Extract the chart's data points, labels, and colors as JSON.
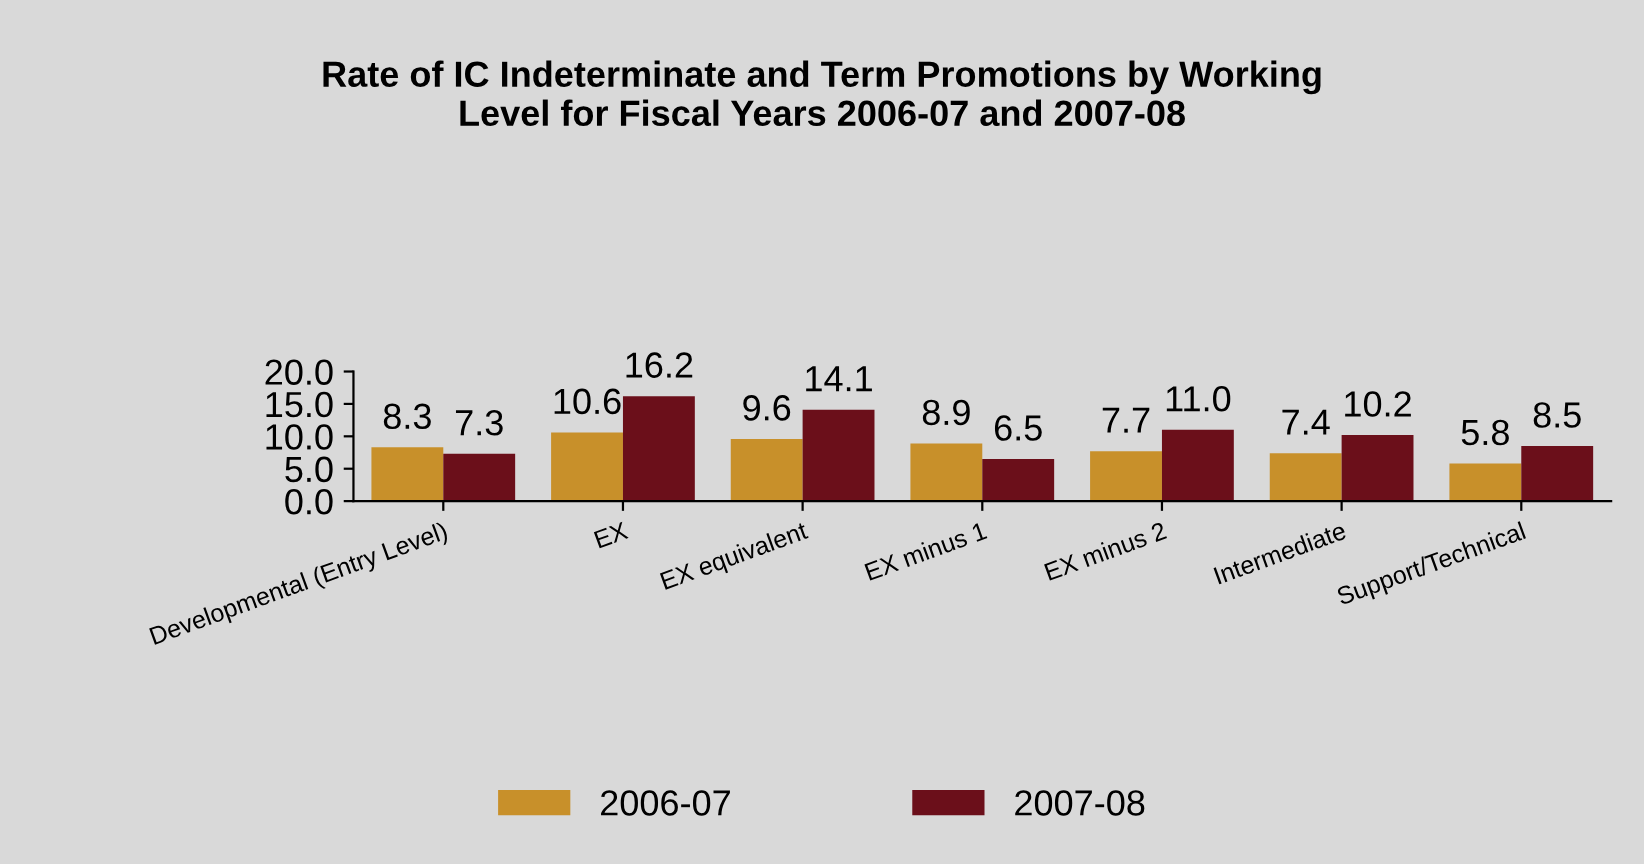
{
  "chart_data": {
    "type": "bar",
    "title": "Rate of IC Indeterminate and Term Promotions by Working\nLevel for Fiscal Years 2006-07 and 2007-08",
    "categories": [
      "Developmental (Entry Level)",
      "EX",
      "EX equivalent",
      "EX minus 1",
      "EX minus 2",
      "Intermediate",
      "Support/Technical"
    ],
    "series": [
      {
        "name": "2006-07",
        "color": "#c8902a",
        "values": [
          8.3,
          10.6,
          9.6,
          8.9,
          7.7,
          7.4,
          5.8
        ],
        "value_labels": [
          "8.3",
          "10.6",
          "9.6",
          "8.9",
          "7.7",
          "7.4",
          "5.8"
        ]
      },
      {
        "name": "2007-08",
        "color": "#6b0f1a",
        "values": [
          7.3,
          16.2,
          14.1,
          6.5,
          11.0,
          10.2,
          8.5
        ],
        "value_labels": [
          "7.3",
          "16.2",
          "14.1",
          "6.5",
          "11.0",
          "10.2",
          "8.5"
        ]
      }
    ],
    "ylim": [
      0,
      20
    ],
    "yticks": [
      {
        "value": 0,
        "label": "0.0"
      },
      {
        "value": 5,
        "label": "5.0"
      },
      {
        "value": 10,
        "label": "10.0"
      },
      {
        "value": 15,
        "label": "15.0"
      },
      {
        "value": 20,
        "label": "20.0"
      }
    ],
    "grid": false,
    "legend": "bottom"
  }
}
